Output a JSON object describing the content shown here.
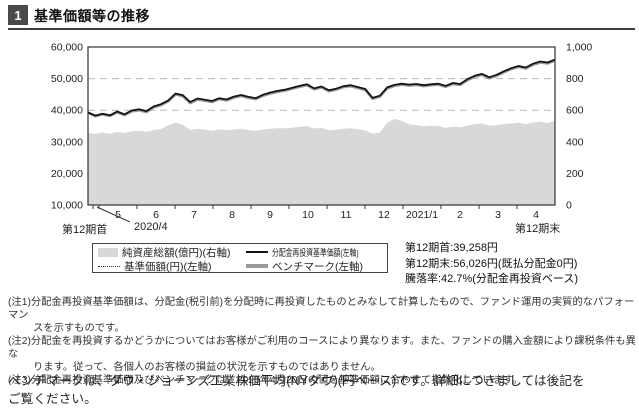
{
  "header": {
    "number": "1",
    "title": "基準価額等の推移"
  },
  "chart_data": {
    "type": "line",
    "title": "基準価額等の推移",
    "left_axis": {
      "label": "円",
      "min": 10000,
      "max": 60000,
      "tick_values": [
        60000,
        50000,
        40000,
        30000,
        20000,
        10000
      ],
      "tick_labels": [
        "60,000",
        "50,000",
        "40,000",
        "30,000",
        "20,000",
        "10,000"
      ]
    },
    "right_axis": {
      "label": "億円",
      "min": 0,
      "max": 1000,
      "tick_values": [
        1000,
        800,
        600,
        400,
        200,
        0
      ],
      "tick_labels": [
        "1,000",
        "800",
        "600",
        "400",
        "200",
        "0"
      ]
    },
    "x_labels": [
      "5",
      "6",
      "7",
      "8",
      "9",
      "10",
      "11",
      "12",
      "2021/1",
      "2",
      "3",
      "4"
    ],
    "period_start_label": "第12期首",
    "period_start_date": "2020/4",
    "period_end_label": "第12期末",
    "grid": "dashed horizontal",
    "series": [
      {
        "id": "net_assets",
        "name": "純資産総額(億円)(右軸)",
        "type": "area",
        "axis": "right",
        "color": "#d8d8d8",
        "values": [
          455,
          450,
          458,
          452,
          462,
          456,
          466,
          470,
          464,
          474,
          482,
          505,
          522,
          508,
          475,
          482,
          478,
          470,
          478,
          474,
          478,
          482,
          474,
          470,
          478,
          482,
          486,
          486,
          490,
          494,
          500,
          484,
          488,
          472,
          476,
          482,
          486,
          480,
          472,
          452,
          458,
          520,
          545,
          532,
          512,
          506,
          498,
          502,
          502,
          488,
          496,
          492,
          502,
          512,
          516,
          502,
          506,
          512,
          516,
          522,
          512,
          522,
          528,
          518,
          535
        ]
      },
      {
        "id": "benchmark",
        "name": "ベンチマーク(左軸)",
        "type": "line",
        "axis": "left",
        "color": "#9b9b9b",
        "width": 2.6,
        "values": [
          39258,
          38100,
          38700,
          38150,
          39350,
          38450,
          39650,
          40000,
          39400,
          40900,
          41600,
          42800,
          45000,
          44400,
          42250,
          43400,
          43000,
          42600,
          43500,
          43100,
          44000,
          44500,
          43900,
          43500,
          44600,
          45300,
          45800,
          46200,
          46800,
          47400,
          47900,
          46600,
          47200,
          46000,
          46500,
          47300,
          47600,
          47000,
          46400,
          43600,
          44300,
          46900,
          47700,
          48100,
          47800,
          48000,
          47600,
          47900,
          48100,
          47400,
          48300,
          48000,
          49500,
          50600,
          51200,
          50100,
          50900,
          52000,
          53000,
          53700,
          53200,
          54400,
          55100,
          54800,
          55700
        ]
      },
      {
        "id": "nav",
        "name": "基準価額(円)(左軸)",
        "type": "line",
        "style": "dotted",
        "axis": "left",
        "color": "#333333",
        "width": 1.2,
        "values": [
          39258,
          38300,
          38900,
          38400,
          39600,
          38700,
          39900,
          40300,
          39700,
          41200,
          41900,
          43100,
          45300,
          44700,
          42600,
          43700,
          43300,
          42900,
          43800,
          43400,
          44300,
          44800,
          44200,
          43800,
          44900,
          45600,
          46100,
          46500,
          47100,
          47700,
          48200,
          46900,
          47500,
          46300,
          46800,
          47600,
          47900,
          47300,
          46700,
          43900,
          44600,
          47200,
          48000,
          48400,
          48100,
          48300,
          47900,
          48200,
          48400,
          47700,
          48600,
          48300,
          49800,
          50900,
          51500,
          50400,
          51200,
          52300,
          53300,
          54000,
          53500,
          54700,
          55400,
          55100,
          56026
        ]
      },
      {
        "id": "nav_reinvested",
        "name": "分配金再投資基準価額(左軸)",
        "type": "line",
        "axis": "left",
        "color": "#141414",
        "width": 1.8,
        "values": [
          39258,
          38300,
          38900,
          38400,
          39600,
          38700,
          39900,
          40300,
          39700,
          41200,
          41900,
          43100,
          45300,
          44700,
          42600,
          43700,
          43300,
          42900,
          43800,
          43400,
          44300,
          44800,
          44200,
          43800,
          44900,
          45600,
          46100,
          46500,
          47100,
          47700,
          48200,
          46900,
          47500,
          46300,
          46800,
          47600,
          47900,
          47300,
          46700,
          43900,
          44600,
          47200,
          48000,
          48400,
          48100,
          48300,
          47900,
          48200,
          48400,
          47700,
          48600,
          48300,
          49800,
          50900,
          51500,
          50400,
          51200,
          52300,
          53300,
          54000,
          53500,
          54700,
          55400,
          55100,
          56026
        ]
      }
    ]
  },
  "legend": {
    "items": [
      {
        "label": "純資産総額(億円)(右軸)",
        "swatch": "area"
      },
      {
        "label": "分配金再投資基準価額(左軸)",
        "swatch": "line"
      },
      {
        "label": "基準価額(円)(左軸)",
        "swatch": "dotted"
      },
      {
        "label": "ベンチマーク(左軸)",
        "swatch": "thick"
      }
    ]
  },
  "stats": {
    "l1": "第12期首:39,258円",
    "l2": "第12期末:56,026円(既払分配金0円)",
    "l3": "騰落率:42.7%(分配金再投資ベース)"
  },
  "notes": {
    "n1l1": "(注1)分配金再投資基準価額は、分配金(税引前)を分配時に再投資したものとみなして計算したもので、ファンド運用の実質的なパフォーマン",
    "n1l2": "スを示すものです。",
    "n2l1": "(注2)分配金を再投資するかどうかについてはお客様がご利用のコースにより異なります。また、ファンドの購入金額により課税条件も異な",
    "n2l2": "ります。従って、各個人のお客様の損益の状況を示すものではありません。",
    "n3l1": "(注3)分配金再投資基準価額及びベンチマークは、2020年4月20日の値を基準価額に合わせて指数化しています。"
  },
  "footer": {
    "l1": "ベンチマークは、ダウ・ジョーンズ工業株価平均(NYダウ)(円ベース)です。詳細につきましては後記を",
    "l2": "ご覧ください。"
  }
}
